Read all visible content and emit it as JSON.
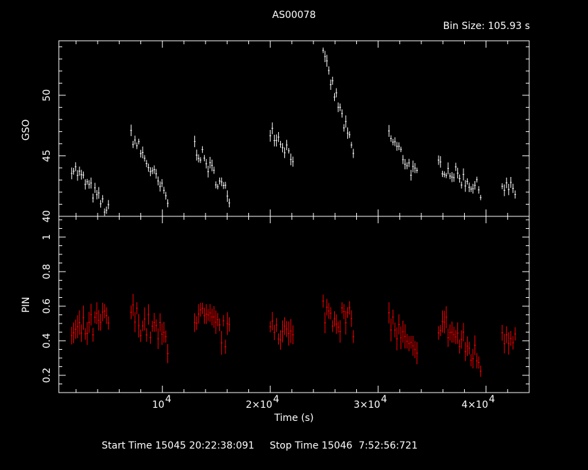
{
  "chart_data": [
    {
      "type": "scatter",
      "title": "AS00078",
      "subtitle": "Bin Size: 105.93 s",
      "ylabel": "GSO",
      "ylim": [
        40,
        54.5
      ],
      "xlim": [
        400,
        44000
      ],
      "ytick_labels": [
        "40",
        "45",
        "50"
      ],
      "ytick_values": [
        40,
        45,
        50
      ],
      "color": "#ffffff",
      "segments": [
        {
          "x0": 1600,
          "x1": 5000,
          "y0": 44.2,
          "y1": 40.4
        },
        {
          "x0": 7100,
          "x1": 10500,
          "y0": 46.8,
          "y1": 41.3
        },
        {
          "x0": 13000,
          "x1": 16200,
          "y0": 45.8,
          "y1": 41.6
        },
        {
          "x0": 20000,
          "x1": 22100,
          "y0": 47.3,
          "y1": 45.0
        },
        {
          "x0": 24900,
          "x1": 27700,
          "y0": 53.2,
          "y1": 45.2
        },
        {
          "x0": 31000,
          "x1": 33600,
          "y0": 46.7,
          "y1": 43.2
        },
        {
          "x0": 35600,
          "x1": 39500,
          "y0": 44.3,
          "y1": 42.2
        },
        {
          "x0": 41500,
          "x1": 42700,
          "y0": 42.6,
          "y1": 42.0
        }
      ]
    },
    {
      "type": "scatter",
      "ylabel": "PIN",
      "xlabel": "Time (s)",
      "ylim": [
        0.1,
        1.12
      ],
      "xlim": [
        400,
        44000
      ],
      "ytick_labels": [
        "0.2",
        "0.4",
        "0.6",
        "0.8",
        "1"
      ],
      "ytick_values": [
        0.2,
        0.4,
        0.6,
        0.8,
        1.0
      ],
      "xtick_labels": [
        "10",
        "4",
        "2×10",
        "4",
        "3×10",
        "4",
        "4×10",
        "4"
      ],
      "xtick_values": [
        10000,
        20000,
        30000,
        40000
      ],
      "color": "#ff0000",
      "segments": [
        {
          "x0": 1600,
          "x1": 5000,
          "y0": 0.43,
          "y1": 0.52
        },
        {
          "x0": 7100,
          "x1": 10500,
          "y0": 0.55,
          "y1": 0.4
        },
        {
          "x0": 13000,
          "x1": 16200,
          "y0": 0.55,
          "y1": 0.42
        },
        {
          "x0": 20000,
          "x1": 22100,
          "y0": 0.53,
          "y1": 0.4
        },
        {
          "x0": 24900,
          "x1": 27700,
          "y0": 0.58,
          "y1": 0.5
        },
        {
          "x0": 31000,
          "x1": 33600,
          "y0": 0.52,
          "y1": 0.28
        },
        {
          "x0": 35600,
          "x1": 39500,
          "y0": 0.52,
          "y1": 0.28
        },
        {
          "x0": 41500,
          "x1": 42700,
          "y0": 0.45,
          "y1": 0.45
        }
      ]
    }
  ],
  "footer": {
    "text": "Start Time 15045 20:22:38:091     Stop Time 15046  7:52:56:721"
  }
}
